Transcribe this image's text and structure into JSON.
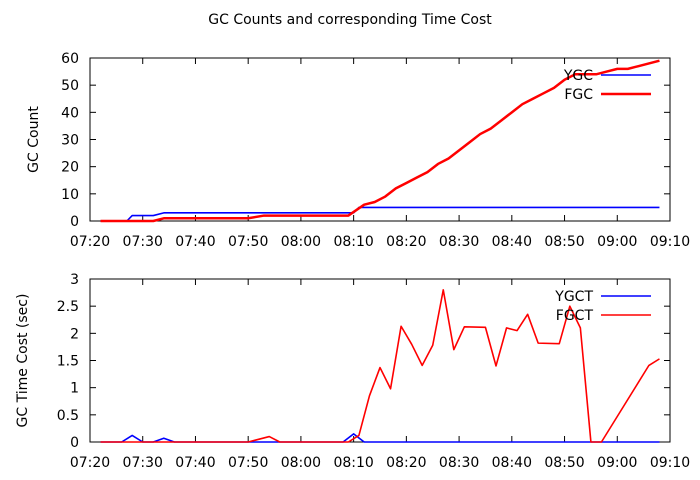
{
  "figure_title": "GC Counts and corresponding Time Cost",
  "chart_data": [
    {
      "type": "line",
      "ylabel": "GC Count",
      "xlabel": "",
      "xlim": [
        "07:20",
        "09:10"
      ],
      "ylim": [
        0,
        60
      ],
      "x_ticks": [
        "07:20",
        "07:30",
        "07:40",
        "07:50",
        "08:00",
        "08:10",
        "08:20",
        "08:30",
        "08:40",
        "08:50",
        "09:00",
        "09:10"
      ],
      "y_ticks": [
        "0",
        "10",
        "20",
        "30",
        "40",
        "50",
        "60"
      ],
      "legend_position": "top-right",
      "grid": false,
      "series": [
        {
          "name": "YGC",
          "color": "#0000ff",
          "points": [
            [
              "07:22",
              0
            ],
            [
              "07:25",
              0
            ],
            [
              "07:27",
              0
            ],
            [
              "07:28",
              2
            ],
            [
              "07:30",
              2
            ],
            [
              "07:32",
              2
            ],
            [
              "07:34",
              3
            ],
            [
              "07:40",
              3
            ],
            [
              "07:50",
              3
            ],
            [
              "08:00",
              3
            ],
            [
              "08:05",
              3
            ],
            [
              "08:08",
              3
            ],
            [
              "08:10",
              3
            ],
            [
              "08:11",
              5
            ],
            [
              "08:15",
              5
            ],
            [
              "08:20",
              5
            ],
            [
              "08:30",
              5
            ],
            [
              "08:40",
              5
            ],
            [
              "08:50",
              5
            ],
            [
              "09:00",
              5
            ],
            [
              "09:08",
              5
            ]
          ]
        },
        {
          "name": "FGC",
          "color": "#ff0000",
          "points": [
            [
              "07:22",
              0
            ],
            [
              "07:25",
              0
            ],
            [
              "07:32",
              0
            ],
            [
              "07:34",
              1
            ],
            [
              "07:40",
              1
            ],
            [
              "07:50",
              1
            ],
            [
              "07:53",
              2
            ],
            [
              "08:00",
              2
            ],
            [
              "08:05",
              2
            ],
            [
              "08:09",
              2
            ],
            [
              "08:12",
              6
            ],
            [
              "08:14",
              7
            ],
            [
              "08:16",
              9
            ],
            [
              "08:18",
              12
            ],
            [
              "08:20",
              14
            ],
            [
              "08:22",
              16
            ],
            [
              "08:24",
              18
            ],
            [
              "08:26",
              21
            ],
            [
              "08:28",
              23
            ],
            [
              "08:30",
              26
            ],
            [
              "08:32",
              29
            ],
            [
              "08:34",
              32
            ],
            [
              "08:36",
              34
            ],
            [
              "08:38",
              37
            ],
            [
              "08:40",
              40
            ],
            [
              "08:42",
              43
            ],
            [
              "08:44",
              45
            ],
            [
              "08:46",
              47
            ],
            [
              "08:48",
              49
            ],
            [
              "08:50",
              52
            ],
            [
              "08:52",
              54
            ],
            [
              "08:54",
              54
            ],
            [
              "08:56",
              54
            ],
            [
              "08:58",
              55
            ],
            [
              "09:00",
              56
            ],
            [
              "09:02",
              56
            ],
            [
              "09:04",
              57
            ],
            [
              "09:06",
              58
            ],
            [
              "09:08",
              59
            ]
          ]
        }
      ]
    },
    {
      "type": "line",
      "ylabel": "GC Time Cost (sec)",
      "xlabel": "",
      "xlim": [
        "07:20",
        "09:10"
      ],
      "ylim": [
        0,
        3
      ],
      "x_ticks": [
        "07:20",
        "07:30",
        "07:40",
        "07:50",
        "08:00",
        "08:10",
        "08:20",
        "08:30",
        "08:40",
        "08:50",
        "09:00",
        "09:10"
      ],
      "y_ticks": [
        "0",
        "0.5",
        "1",
        "1.5",
        "2",
        "2.5",
        "3"
      ],
      "legend_position": "top-right",
      "grid": false,
      "series": [
        {
          "name": "YGCT",
          "color": "#0000ff",
          "points": [
            [
              "07:22",
              0
            ],
            [
              "07:26",
              0
            ],
            [
              "07:28",
              0.12
            ],
            [
              "07:30",
              0
            ],
            [
              "07:32",
              0
            ],
            [
              "07:34",
              0.07
            ],
            [
              "07:36",
              0
            ],
            [
              "07:50",
              0
            ],
            [
              "08:00",
              0
            ],
            [
              "08:08",
              0
            ],
            [
              "08:10",
              0.15
            ],
            [
              "08:12",
              0
            ],
            [
              "08:20",
              0
            ],
            [
              "08:30",
              0
            ],
            [
              "08:40",
              0
            ],
            [
              "08:50",
              0
            ],
            [
              "09:00",
              0
            ],
            [
              "09:08",
              0
            ]
          ]
        },
        {
          "name": "FGCT",
          "color": "#ff0000",
          "points": [
            [
              "07:22",
              0
            ],
            [
              "07:50",
              0
            ],
            [
              "07:54",
              0.1
            ],
            [
              "07:56",
              0
            ],
            [
              "08:00",
              0
            ],
            [
              "08:05",
              0
            ],
            [
              "08:09",
              0
            ],
            [
              "08:11",
              0.12
            ],
            [
              "08:13",
              0.85
            ],
            [
              "08:15",
              1.37
            ],
            [
              "08:17",
              0.98
            ],
            [
              "08:19",
              2.13
            ],
            [
              "08:21",
              1.8
            ],
            [
              "08:23",
              1.41
            ],
            [
              "08:25",
              1.78
            ],
            [
              "08:27",
              2.8
            ],
            [
              "08:29",
              1.7
            ],
            [
              "08:31",
              2.12
            ],
            [
              "08:35",
              2.11
            ],
            [
              "08:37",
              1.4
            ],
            [
              "08:39",
              2.1
            ],
            [
              "08:41",
              2.05
            ],
            [
              "08:43",
              2.35
            ],
            [
              "08:45",
              1.82
            ],
            [
              "08:49",
              1.81
            ],
            [
              "08:51",
              2.5
            ],
            [
              "08:53",
              2.1
            ],
            [
              "08:55",
              0
            ],
            [
              "08:57",
              0
            ],
            [
              "09:06",
              1.41
            ],
            [
              "09:08",
              1.53
            ]
          ]
        }
      ]
    }
  ]
}
